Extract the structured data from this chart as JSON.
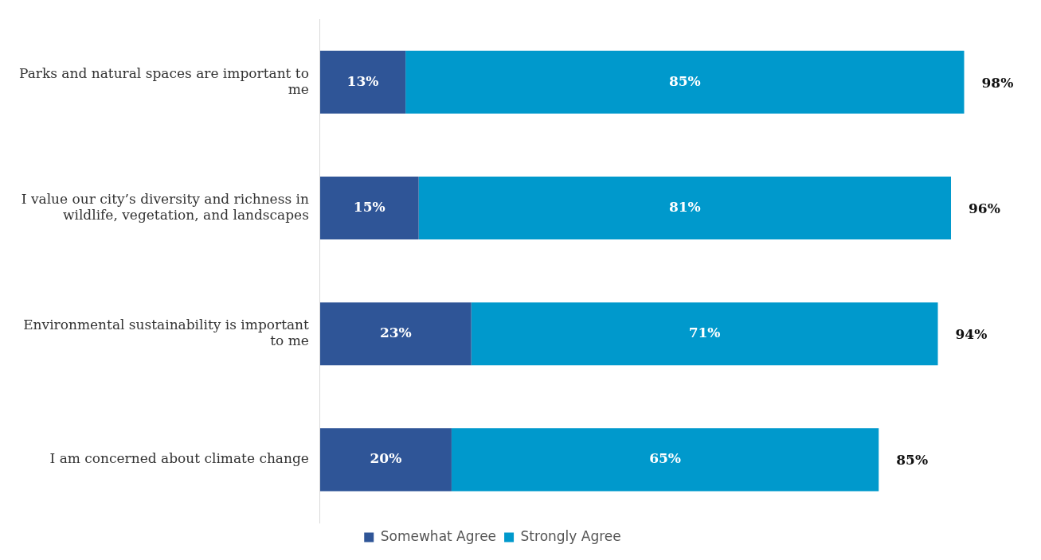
{
  "chart_data": {
    "type": "bar",
    "orientation": "horizontal",
    "stacked": true,
    "categories": [
      "Parks and natural spaces are important to me",
      "I value our city’s diversity and richness in wildlife, vegetation, and landscapes",
      "Environmental sustainability is important to me",
      "I am concerned about climate change"
    ],
    "series": [
      {
        "name": "Somewhat Agree",
        "color": "#2f5597",
        "values": [
          13,
          15,
          23,
          20
        ],
        "value_labels": [
          "13%",
          "15%",
          "23%",
          "20%"
        ]
      },
      {
        "name": "Strongly Agree",
        "color": "#0099cc",
        "values": [
          85,
          81,
          71,
          65
        ],
        "value_labels": [
          "85%",
          "81%",
          "71%",
          "65%"
        ]
      }
    ],
    "totals": [
      "98%",
      "96%",
      "94%",
      "85%"
    ],
    "tick_labels": "y",
    "legend": "bottom"
  }
}
